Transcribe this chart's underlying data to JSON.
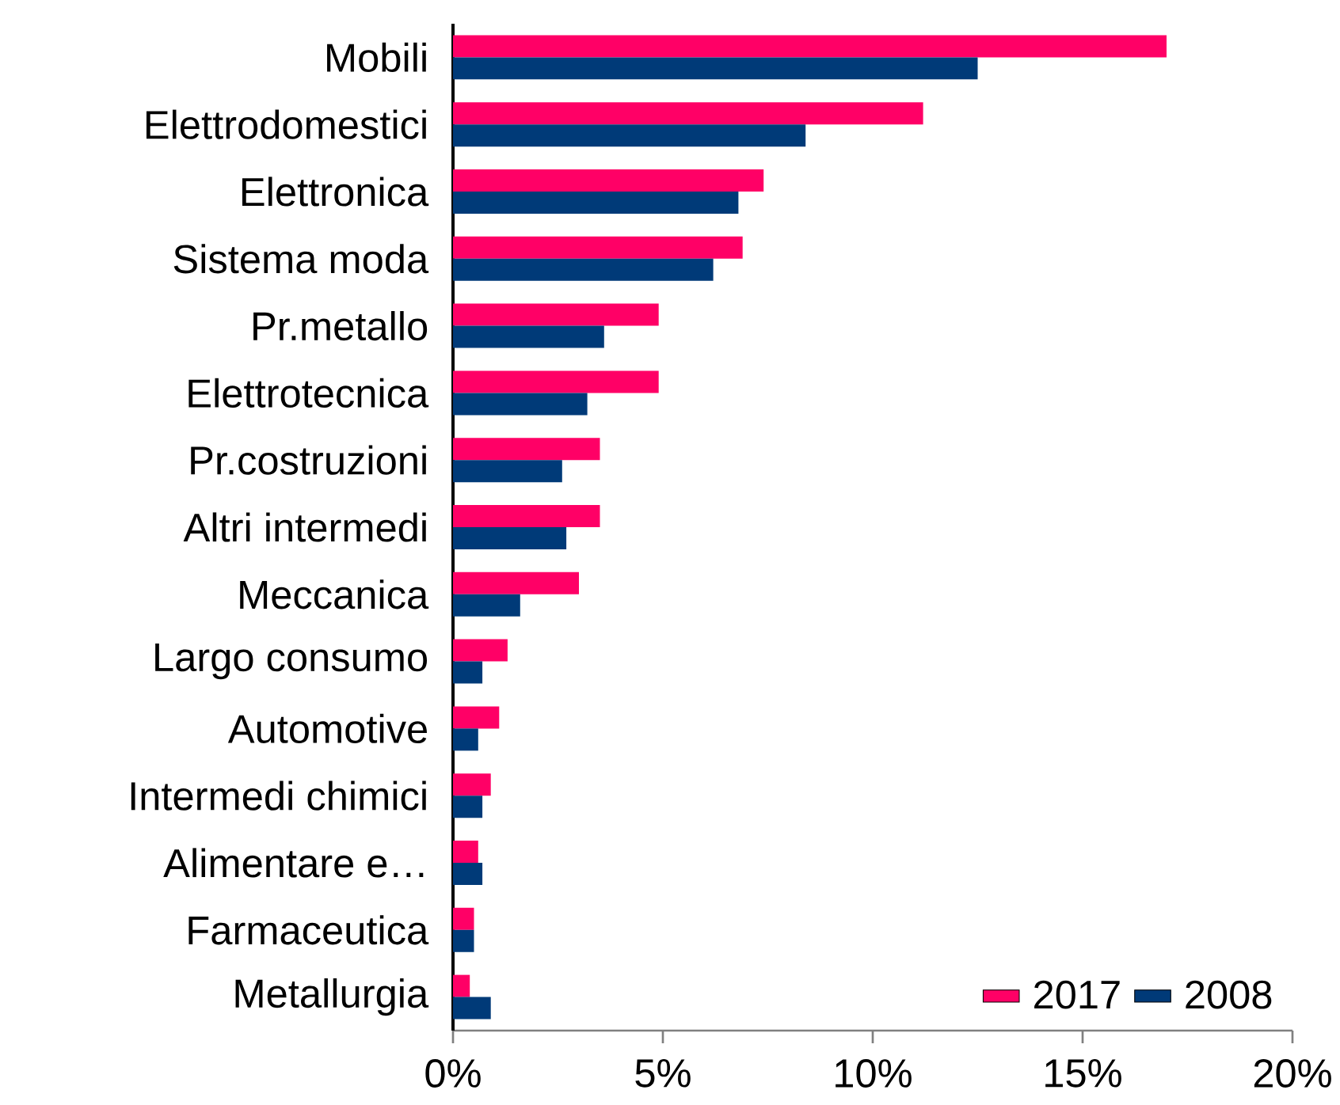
{
  "chart_data": {
    "type": "bar",
    "orientation": "horizontal",
    "categories": [
      "Mobili",
      "Elettrodomestici",
      "Elettronica",
      "Sistema moda",
      "Pr.metallo",
      "Elettrotecnica",
      "Pr.costruzioni",
      "Altri intermedi",
      "Meccanica",
      "Largo consumo",
      "Automotive",
      "Intermedi chimici",
      "Alimentare e…",
      "Farmaceutica",
      "Metallurgia"
    ],
    "series": [
      {
        "name": "2017",
        "color": "#ff0066",
        "values": [
          17.0,
          11.2,
          7.4,
          6.9,
          4.9,
          4.9,
          3.5,
          3.5,
          3.0,
          1.3,
          1.1,
          0.9,
          0.6,
          0.5,
          0.4
        ]
      },
      {
        "name": "2008",
        "color": "#003a78",
        "values": [
          12.5,
          8.4,
          6.8,
          6.2,
          3.6,
          3.2,
          2.6,
          2.7,
          1.6,
          0.7,
          0.6,
          0.7,
          0.7,
          0.5,
          0.9
        ]
      }
    ],
    "xlim": [
      0,
      20
    ],
    "xticks": [
      {
        "value": 0,
        "label": "0%"
      },
      {
        "value": 5,
        "label": "5%"
      },
      {
        "value": 10,
        "label": "10%"
      },
      {
        "value": 15,
        "label": "15%"
      },
      {
        "value": 20,
        "label": "20%"
      }
    ],
    "grid": false,
    "legend": "bottom right"
  }
}
